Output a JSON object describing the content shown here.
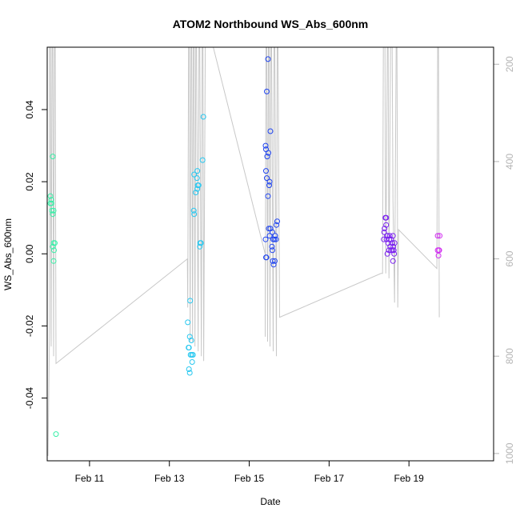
{
  "chart_data": {
    "type": "scatter",
    "title": "ATOM2 Northbound WS_Abs_600nm",
    "xlabel": "Date",
    "ylabel": "WS_Abs_600nm",
    "x_unit": "days since Feb 10 00:00",
    "xlim": [
      -0.06,
      11.12
    ],
    "ylim": [
      -0.0574,
      0.0573
    ],
    "x_ticks": [
      {
        "value": 1,
        "label": "Feb 11"
      },
      {
        "value": 3,
        "label": "Feb 13"
      },
      {
        "value": 5,
        "label": "Feb 15"
      },
      {
        "value": 7,
        "label": "Feb 17"
      },
      {
        "value": 9,
        "label": "Feb 19"
      }
    ],
    "y_ticks": [
      {
        "value": -0.04,
        "label": "-0.04"
      },
      {
        "value": -0.02,
        "label": "-0.02"
      },
      {
        "value": 0.0,
        "label": "0.00"
      },
      {
        "value": 0.02,
        "label": "0.02"
      },
      {
        "value": 0.04,
        "label": "0.04"
      }
    ],
    "secondary_axis": {
      "side": "right",
      "color": "#b4b4b4",
      "ylim": [
        1015,
        165
      ],
      "ticks": [
        {
          "value": 200,
          "label": "200"
        },
        {
          "value": 400,
          "label": "400"
        },
        {
          "value": 600,
          "label": "600"
        },
        {
          "value": 800,
          "label": "800"
        },
        {
          "value": 1000,
          "label": "1000"
        }
      ]
    },
    "series": [
      {
        "color": "#38f0a8",
        "points": [
          [
            0.08,
            0.027
          ],
          [
            0.02,
            0.016
          ],
          [
            0.04,
            0.015
          ],
          [
            0.05,
            0.014
          ],
          [
            0.02,
            0.014
          ],
          [
            0.06,
            0.012
          ],
          [
            0.1,
            0.012
          ],
          [
            0.08,
            0.011
          ],
          [
            0.1,
            0.003
          ],
          [
            0.13,
            0.003
          ],
          [
            0.08,
            0.002
          ],
          [
            0.11,
            0.001
          ],
          [
            0.1,
            -0.002
          ],
          [
            0.16,
            -0.05
          ]
        ]
      },
      {
        "color": "#29c8f0",
        "points": [
          [
            3.85,
            0.038
          ],
          [
            3.83,
            0.026
          ],
          [
            3.7,
            0.023
          ],
          [
            3.62,
            0.022
          ],
          [
            3.69,
            0.021
          ],
          [
            3.71,
            0.019
          ],
          [
            3.73,
            0.019
          ],
          [
            3.7,
            0.018
          ],
          [
            3.66,
            0.017
          ],
          [
            3.61,
            0.012
          ],
          [
            3.62,
            0.011
          ],
          [
            3.77,
            0.003
          ],
          [
            3.79,
            0.003
          ],
          [
            3.76,
            0.002
          ],
          [
            3.52,
            -0.013
          ],
          [
            3.46,
            -0.019
          ],
          [
            3.51,
            -0.023
          ],
          [
            3.55,
            -0.024
          ],
          [
            3.48,
            -0.026
          ],
          [
            3.49,
            -0.026
          ],
          [
            3.53,
            -0.028
          ],
          [
            3.56,
            -0.028
          ],
          [
            3.59,
            -0.028
          ],
          [
            3.57,
            -0.03
          ],
          [
            3.49,
            -0.032
          ],
          [
            3.51,
            -0.033
          ]
        ]
      },
      {
        "color": "#1f44f0",
        "points": [
          [
            5.47,
            0.054
          ],
          [
            5.44,
            0.045
          ],
          [
            5.53,
            0.034
          ],
          [
            5.41,
            0.03
          ],
          [
            5.42,
            0.029
          ],
          [
            5.48,
            0.028
          ],
          [
            5.45,
            0.027
          ],
          [
            5.42,
            0.023
          ],
          [
            5.44,
            0.021
          ],
          [
            5.51,
            0.02
          ],
          [
            5.5,
            0.019
          ],
          [
            5.47,
            0.016
          ],
          [
            5.7,
            0.009
          ],
          [
            5.68,
            0.008
          ],
          [
            5.49,
            0.007
          ],
          [
            5.53,
            0.007
          ],
          [
            5.58,
            0.006
          ],
          [
            5.51,
            0.005
          ],
          [
            5.65,
            0.005
          ],
          [
            5.41,
            0.004
          ],
          [
            5.63,
            0.004
          ],
          [
            5.67,
            0.004
          ],
          [
            5.6,
            0.004
          ],
          [
            5.57,
            0.002
          ],
          [
            5.58,
            0.001
          ],
          [
            5.42,
            -0.001
          ],
          [
            5.43,
            -0.001
          ],
          [
            5.59,
            -0.002
          ],
          [
            5.64,
            -0.002
          ],
          [
            5.61,
            -0.003
          ]
        ]
      },
      {
        "color": "#7a1ff0",
        "points": [
          [
            8.41,
            0.01
          ],
          [
            8.43,
            0.01
          ],
          [
            8.43,
            0.008
          ],
          [
            8.39,
            0.007
          ],
          [
            8.38,
            0.006
          ],
          [
            8.45,
            0.005
          ],
          [
            8.46,
            0.005
          ],
          [
            8.52,
            0.005
          ],
          [
            8.6,
            0.005
          ],
          [
            8.37,
            0.004
          ],
          [
            8.44,
            0.004
          ],
          [
            8.51,
            0.004
          ],
          [
            8.55,
            0.004
          ],
          [
            8.48,
            0.003
          ],
          [
            8.58,
            0.003
          ],
          [
            8.64,
            0.003
          ],
          [
            8.53,
            0.002
          ],
          [
            8.61,
            0.002
          ],
          [
            8.5,
            0.001
          ],
          [
            8.55,
            0.001
          ],
          [
            8.59,
            0.001
          ],
          [
            8.62,
            0.001
          ],
          [
            8.46,
            0.0
          ],
          [
            8.63,
            0.0
          ],
          [
            8.6,
            -0.002
          ]
        ]
      },
      {
        "color": "#d12ef0",
        "points": [
          [
            9.72,
            0.005
          ],
          [
            9.77,
            0.005
          ],
          [
            9.72,
            0.001
          ],
          [
            9.75,
            0.001
          ],
          [
            9.76,
            0.001
          ],
          [
            9.74,
            -0.0005
          ]
        ]
      }
    ],
    "secondary_series": {
      "color": "#c8c8c8",
      "points": [
        [
          -0.04,
          1005
        ],
        [
          0.0,
          740
        ],
        [
          0.0,
          165
        ],
        [
          0.02,
          165
        ],
        [
          0.04,
          780
        ],
        [
          0.06,
          165
        ],
        [
          0.08,
          165
        ],
        [
          0.1,
          800
        ],
        [
          0.12,
          165
        ],
        [
          0.14,
          165
        ],
        [
          0.16,
          815
        ],
        [
          0.16,
          815
        ],
        [
          3.45,
          600
        ],
        [
          3.46,
          700
        ],
        [
          3.48,
          165
        ],
        [
          3.5,
          165
        ],
        [
          3.52,
          770
        ],
        [
          3.54,
          165
        ],
        [
          3.56,
          165
        ],
        [
          3.58,
          770
        ],
        [
          3.6,
          165
        ],
        [
          3.62,
          165
        ],
        [
          3.64,
          780
        ],
        [
          3.66,
          165
        ],
        [
          3.68,
          165
        ],
        [
          3.72,
          790
        ],
        [
          3.74,
          165
        ],
        [
          3.76,
          165
        ],
        [
          3.8,
          800
        ],
        [
          3.82,
          165
        ],
        [
          3.84,
          165
        ],
        [
          3.86,
          810
        ],
        [
          3.9,
          165
        ],
        [
          4.1,
          165
        ],
        [
          5.4,
          590
        ],
        [
          5.4,
          760
        ],
        [
          5.42,
          165
        ],
        [
          5.44,
          165
        ],
        [
          5.46,
          770
        ],
        [
          5.48,
          165
        ],
        [
          5.5,
          165
        ],
        [
          5.52,
          780
        ],
        [
          5.54,
          165
        ],
        [
          5.56,
          165
        ],
        [
          5.6,
          790
        ],
        [
          5.62,
          165
        ],
        [
          5.64,
          165
        ],
        [
          5.68,
          800
        ],
        [
          5.7,
          165
        ],
        [
          5.72,
          165
        ],
        [
          5.76,
          720
        ],
        [
          8.3,
          630
        ],
        [
          8.34,
          630
        ],
        [
          8.36,
          165
        ],
        [
          8.4,
          165
        ],
        [
          8.42,
          630
        ],
        [
          8.46,
          165
        ],
        [
          8.48,
          165
        ],
        [
          8.5,
          640
        ],
        [
          8.54,
          165
        ],
        [
          8.58,
          165
        ],
        [
          8.6,
          480
        ],
        [
          8.64,
          690
        ],
        [
          8.68,
          165
        ],
        [
          8.7,
          165
        ],
        [
          8.72,
          700
        ],
        [
          8.74,
          540
        ],
        [
          9.7,
          620
        ],
        [
          9.72,
          165
        ],
        [
          9.74,
          165
        ],
        [
          9.76,
          720
        ],
        [
          9.76,
          720
        ]
      ]
    }
  }
}
